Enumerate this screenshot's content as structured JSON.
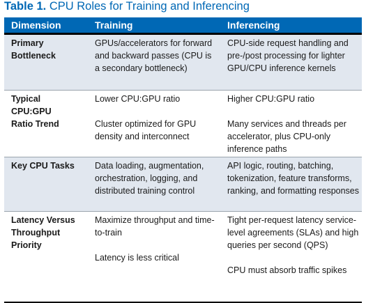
{
  "title": {
    "number": "Table 1.",
    "text": "CPU Roles for Training and Inferencing"
  },
  "headers": [
    "Dimension",
    "Training",
    "Inferencing"
  ],
  "rows": [
    {
      "dimension": [
        "Primary",
        "Bottleneck"
      ],
      "training": [
        "GPUs/accelerators for forward and backward passes (CPU is a secondary bottleneck)"
      ],
      "inferencing": [
        "CPU-side request handling and pre-/post processing for lighter GPU/CPU inference kernels"
      ]
    },
    {
      "dimension": [
        "Typical",
        "CPU:GPU",
        "Ratio Trend"
      ],
      "training": [
        "Lower CPU:GPU ratio",
        "Cluster optimized for GPU density and interconnect"
      ],
      "inferencing": [
        "Higher CPU:GPU ratio",
        "Many services and threads per accelerator, plus CPU-only inference paths"
      ]
    },
    {
      "dimension": [
        "Key CPU Tasks"
      ],
      "training": [
        "Data loading, augmentation, orchestration, logging, and distributed training control"
      ],
      "inferencing": [
        "API logic, routing, batching, tokenization, feature transforms, ranking, and formatting responses"
      ]
    },
    {
      "dimension": [
        "Latency Versus",
        "Throughput",
        "Priority"
      ],
      "training": [
        "Maximize throughput and time-to-train",
        "Latency is less critical"
      ],
      "inferencing": [
        "Tight per-request latency service-level agreements (SLAs) and high queries per second (QPS)",
        "CPU must absorb traffic spikes"
      ]
    }
  ],
  "colors": {
    "title": "#0068b5",
    "header_bg": "#0068b5",
    "header_text": "#ffffff",
    "shaded_row": "#e1e7ef"
  }
}
